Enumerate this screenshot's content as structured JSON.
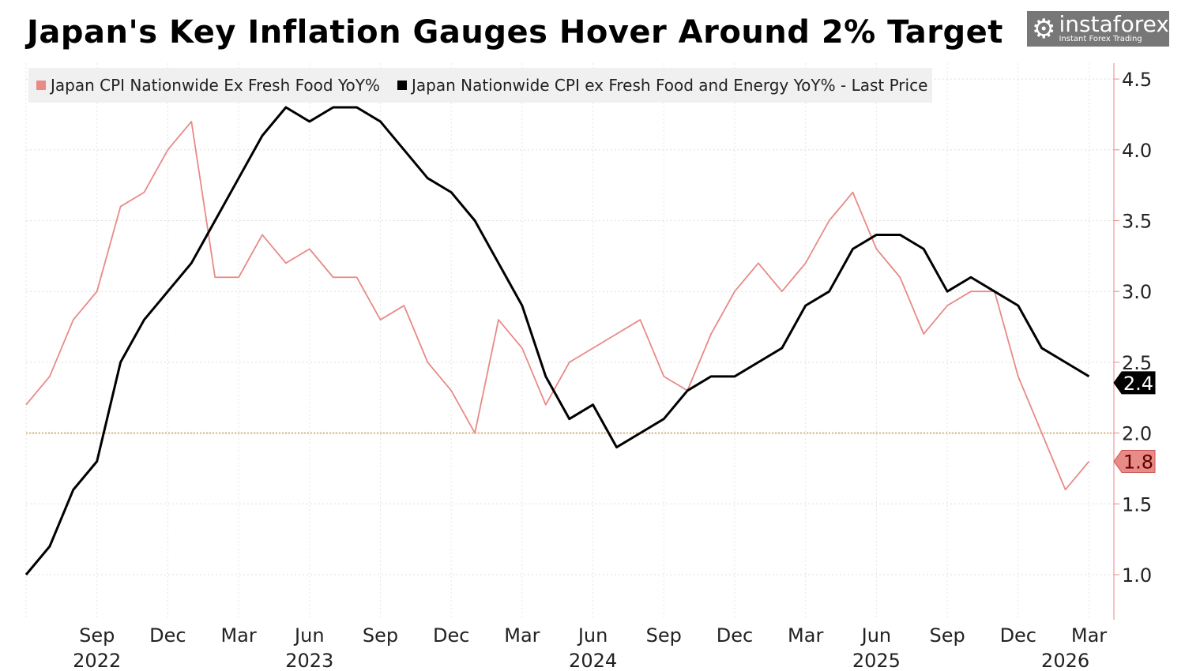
{
  "chart_data": {
    "type": "line",
    "title": "Japan's Key Inflation Gauges Hover Around 2% Target",
    "x_start": "2022-06",
    "x_end": "2026-03",
    "frequency": "monthly",
    "x_ticks": [
      "Sep",
      "Dec",
      "Mar",
      "Jun",
      "Sep",
      "Dec",
      "Mar",
      "Jun",
      "Sep",
      "Dec",
      "Mar",
      "Jun",
      "Sep",
      "Dec",
      "Mar"
    ],
    "x_tick_months": [
      "2022-09",
      "2022-12",
      "2023-03",
      "2023-06",
      "2023-09",
      "2023-12",
      "2024-03",
      "2024-06",
      "2024-09",
      "2024-12",
      "2025-03",
      "2025-06",
      "2025-09",
      "2025-12",
      "2026-03"
    ],
    "year_labels": [
      {
        "label": "2022",
        "month": "2022-09"
      },
      {
        "label": "2023",
        "month": "2023-06"
      },
      {
        "label": "2024",
        "month": "2024-06"
      },
      {
        "label": "2025",
        "month": "2025-06"
      },
      {
        "label": "2026",
        "month": "2026-02"
      }
    ],
    "y_ticks": [
      "1.0",
      "1.5",
      "2.0",
      "2.5",
      "3.0",
      "3.5",
      "4.0",
      "4.5"
    ],
    "ylim": [
      0.75,
      4.6
    ],
    "y_axis_side": "right",
    "grid": true,
    "reference_line": {
      "value": 2.0,
      "color": "#d9b27c"
    },
    "legend_placement": "top-left",
    "series": [
      {
        "name": "Japan CPI Nationwide Ex Fresh Food YoY%",
        "color": "#e88a86",
        "last_label": "1.8",
        "values": [
          2.2,
          2.4,
          2.8,
          3.0,
          3.6,
          3.7,
          4.0,
          4.2,
          3.1,
          3.1,
          3.4,
          3.2,
          3.3,
          3.1,
          3.1,
          2.8,
          2.9,
          2.5,
          2.3,
          2.0,
          2.8,
          2.6,
          2.2,
          2.5,
          2.6,
          2.7,
          2.8,
          2.4,
          2.3,
          2.7,
          3.0,
          3.2,
          3.0,
          3.2,
          3.5,
          3.7,
          3.3,
          3.1,
          2.7,
          2.9,
          3.0,
          3.0,
          2.4,
          2.0,
          1.6,
          1.8
        ]
      },
      {
        "name": "Japan Nationwide CPI ex Fresh Food and Energy YoY% - Last Price",
        "color": "#000000",
        "last_label": "2.4",
        "values": [
          1.0,
          1.2,
          1.6,
          1.8,
          2.5,
          2.8,
          3.0,
          3.2,
          3.5,
          3.8,
          4.1,
          4.3,
          4.2,
          4.3,
          4.3,
          4.2,
          4.0,
          3.8,
          3.7,
          3.5,
          3.2,
          2.9,
          2.4,
          2.1,
          2.2,
          1.9,
          2.0,
          2.1,
          2.3,
          2.4,
          2.4,
          2.5,
          2.6,
          2.9,
          3.0,
          3.3,
          3.4,
          3.4,
          3.3,
          3.0,
          3.1,
          3.0,
          2.9,
          2.6,
          2.5,
          2.4
        ]
      }
    ]
  },
  "watermark": {
    "brand": "instaforex",
    "tagline": "Instant Forex Trading"
  }
}
